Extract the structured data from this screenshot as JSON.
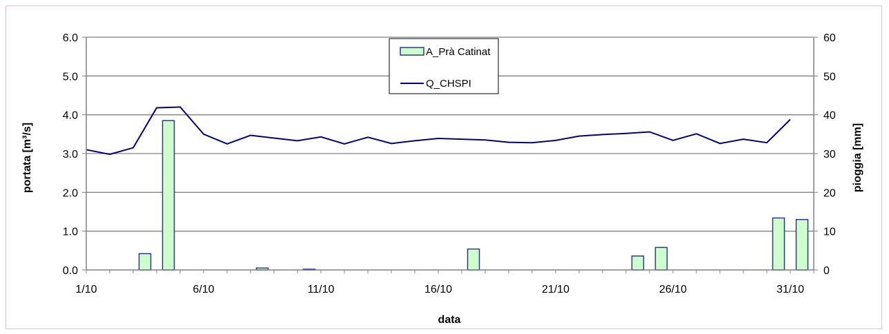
{
  "chart_data": {
    "type": "bar+line",
    "xlabel": "data",
    "ylabel_left": "portata [m³/s]",
    "ylabel_right": "pioggia [mm]",
    "x_ticks": [
      "1/10",
      "6/10",
      "11/10",
      "16/10",
      "21/10",
      "26/10",
      "31/10"
    ],
    "y_left_ticks": [
      "0.0",
      "1.0",
      "2.0",
      "3.0",
      "4.0",
      "5.0",
      "6.0"
    ],
    "y_right_ticks": [
      "0",
      "10",
      "20",
      "30",
      "40",
      "50",
      "60"
    ],
    "ylim_left": [
      0,
      6
    ],
    "ylim_right": [
      0,
      60
    ],
    "grid": "horizontal",
    "legend_position": "top-center",
    "colors": {
      "bar_fill": "#ccffcc",
      "bar_stroke": "#333399",
      "line": "#000080"
    },
    "series": [
      {
        "name": "A_Prà Catinat",
        "kind": "bar",
        "axis": "right",
        "x": [
          "3/10",
          "4/10",
          "8/10",
          "10/10",
          "17/10",
          "24/10",
          "25/10",
          "30/10",
          "31/10"
        ],
        "values": [
          4.2,
          38.5,
          0.5,
          0.2,
          5.4,
          3.6,
          5.8,
          13.4,
          13.0
        ]
      },
      {
        "name": "Q_CHSPI",
        "kind": "line",
        "axis": "left",
        "x": [
          "1/10",
          "2/10",
          "3/10",
          "4/10",
          "5/10",
          "6/10",
          "7/10",
          "8/10",
          "9/10",
          "10/10",
          "11/10",
          "12/10",
          "13/10",
          "14/10",
          "15/10",
          "16/10",
          "17/10",
          "18/10",
          "19/10",
          "20/10",
          "21/10",
          "22/10",
          "23/10",
          "24/10",
          "25/10",
          "26/10",
          "27/10",
          "28/10",
          "29/10",
          "30/10",
          "31/10"
        ],
        "values": [
          3.1,
          2.98,
          3.15,
          4.18,
          4.2,
          3.5,
          3.25,
          3.47,
          3.4,
          3.33,
          3.43,
          3.25,
          3.42,
          3.26,
          3.33,
          3.39,
          3.37,
          3.35,
          3.29,
          3.28,
          3.34,
          3.45,
          3.49,
          3.52,
          3.56,
          3.34,
          3.51,
          3.26,
          3.37,
          3.28,
          3.88
        ]
      }
    ]
  }
}
